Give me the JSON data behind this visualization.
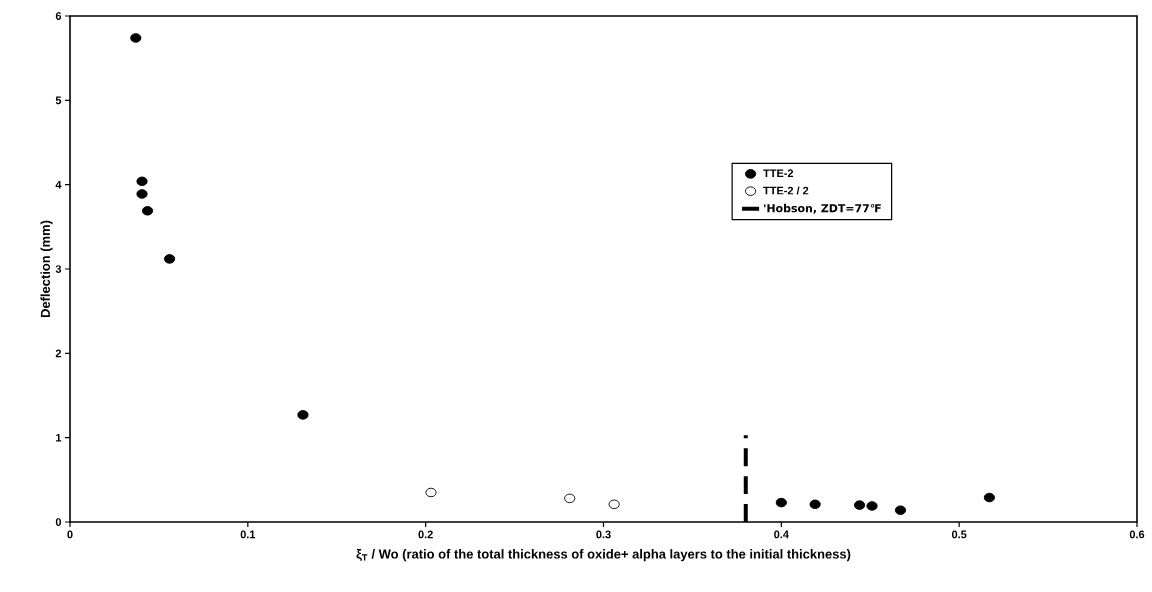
{
  "chart_data": {
    "type": "scatter",
    "xlabel": "ξ$_{T}$ / Wo (ratio of the total thickness of oxide+ alpha layers to the initial thickness)",
    "ylabel": "Deflection (mm)",
    "xlim": [
      0,
      0.6
    ],
    "ylim": [
      0,
      6
    ],
    "xticks": [
      0,
      0.1,
      0.2,
      0.3,
      0.4,
      0.5,
      0.6
    ],
    "yticks": [
      0,
      1,
      2,
      3,
      4,
      5,
      6
    ],
    "grid": false,
    "legend": "right",
    "series": [
      {
        "name": "TTE-2",
        "color": "#000000",
        "marker": "circle",
        "x": [
          0.037,
          0.0405,
          0.0405,
          0.0436,
          0.056,
          0.131,
          0.4,
          0.419,
          0.444,
          0.451,
          0.467,
          0.517
        ],
        "values": [
          5.74,
          4.04,
          3.89,
          3.69,
          3.12,
          1.27,
          0.23,
          0.21,
          0.2,
          0.19,
          0.14,
          0.29
        ]
      },
      {
        "name": "TTE-2 / 2",
        "type": "scatter",
        "color": "#000000",
        "marker": "open circle",
        "x": [
          0.203,
          0.281,
          0.306
        ],
        "values": [
          0.35,
          0.28,
          0.21
        ]
      },
      {
        "name": "'Hobson, ZDT=77℉",
        "type": "line",
        "color": "#000000",
        "line_style": "dashed",
        "x": [
          0.38,
          0.38
        ],
        "values": [
          0,
          1.03
        ]
      }
    ]
  }
}
